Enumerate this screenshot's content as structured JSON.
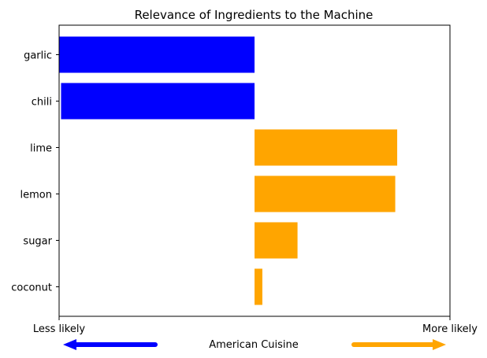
{
  "chart_data": {
    "type": "bar",
    "orientation": "horizontal",
    "title": "Relevance of Ingredients to the Machine",
    "categories": [
      "garlic",
      "chili",
      "lime",
      "lemon",
      "sugar",
      "coconut"
    ],
    "values": [
      -1.0,
      -0.99,
      0.73,
      0.72,
      0.22,
      0.04
    ],
    "xlim": [
      -1.0,
      1.0
    ],
    "x_tick_labels": [
      "Less likely",
      "More likely"
    ],
    "xlabel": "American Cuisine",
    "ylabel": "",
    "grid": false,
    "colors": {
      "negative": "#0000ff",
      "positive": "#ffa500",
      "axis": "#000000"
    },
    "arrows": [
      {
        "direction": "left",
        "color": "#0000ff"
      },
      {
        "direction": "right",
        "color": "#ffa500"
      }
    ]
  }
}
